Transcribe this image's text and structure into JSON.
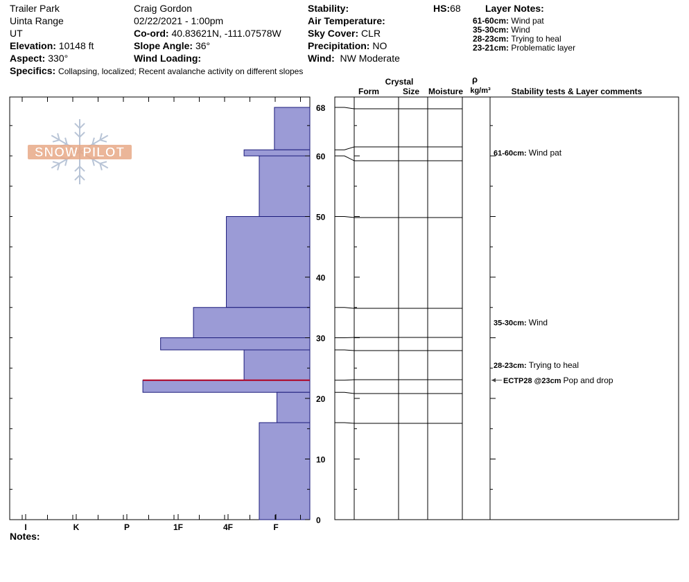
{
  "header": {
    "location": "Trailer Park",
    "range": "Uinta Range",
    "state": "UT",
    "elevation_label": "Elevation:",
    "elevation_value": "10148 ft",
    "aspect_label": "Aspect:",
    "aspect_value": "330°",
    "observer": "Craig Gordon",
    "datetime": "02/22/2021 - 1:00pm",
    "coord_label": "Co-ord:",
    "coord_value": "40.83621N, -111.07578W",
    "slope_label": "Slope Angle:",
    "slope_value": "36°",
    "wind_loading_label": "Wind Loading:",
    "wind_loading_value": "",
    "stability_label": "Stability:",
    "stability_value": "",
    "air_temp_label": "Air Temperature:",
    "air_temp_value": "",
    "sky_label": "Sky Cover:",
    "sky_value": "CLR",
    "precip_label": "Precipitation:",
    "precip_value": "NO",
    "wind_label": "Wind:",
    "wind_value": "NW Moderate",
    "hs_label": "HS:",
    "hs_value": "68",
    "specifics_label": "Specifics:",
    "specifics_value": "Collapsing, localized;  Recent avalanche activity on different slopes"
  },
  "layer_notes": {
    "title": "Layer Notes:",
    "items": [
      {
        "range": "61-60cm:",
        "text": "Wind pat"
      },
      {
        "range": "35-30cm:",
        "text": "Wind"
      },
      {
        "range": "28-23cm:",
        "text": "Trying to heal"
      },
      {
        "range": "23-21cm:",
        "text": "Problematic layer"
      }
    ]
  },
  "logo": {
    "text": "SNOW PILOT",
    "color": "#e8a987"
  },
  "table_headers": {
    "crystal": "Crystal",
    "form": "Form",
    "size": "Size",
    "moisture": "Moisture",
    "rho": "ρ",
    "density_unit": "kg/m³",
    "stability_tests": "Stability tests & Layer comments"
  },
  "comments": [
    {
      "range": "61-60cm:",
      "text": "Wind pat",
      "at": 60.5
    },
    {
      "range": "35-30cm:",
      "text": "Wind",
      "at": 32.5
    },
    {
      "range": "28-23cm:",
      "text": "Trying to heal",
      "at": 25.5
    }
  ],
  "stability_test": {
    "label": "ECTP28 @23cm",
    "text": "Pop and drop",
    "depth": 23
  },
  "notes_label": "Notes:",
  "colors": {
    "layer_fill": "#9b9bd6",
    "layer_stroke": "#1a1a7a",
    "weak_layer": "#b00020"
  },
  "chart_data": {
    "type": "snow-profile",
    "y_axis": {
      "min": 0,
      "max": 68,
      "ticks": [
        0,
        10,
        20,
        30,
        40,
        50,
        60,
        68
      ],
      "unit": "cm"
    },
    "hardness_scale": [
      "I",
      "K",
      "P",
      "1F",
      "4F",
      "F"
    ],
    "layers": [
      {
        "top": 68,
        "bottom": 61,
        "hardness": 0.7
      },
      {
        "top": 61,
        "bottom": 60,
        "hardness": 1.3
      },
      {
        "top": 60,
        "bottom": 50,
        "hardness": 1.0
      },
      {
        "top": 50,
        "bottom": 35,
        "hardness": 1.65
      },
      {
        "top": 35,
        "bottom": 30,
        "hardness": 2.3
      },
      {
        "top": 30,
        "bottom": 28,
        "hardness": 2.95
      },
      {
        "top": 28,
        "bottom": 23,
        "hardness": 1.3
      },
      {
        "top": 23,
        "bottom": 21,
        "hardness": 3.3
      },
      {
        "top": 21,
        "bottom": 16,
        "hardness": 0.65
      },
      {
        "top": 16,
        "bottom": 0,
        "hardness": 1.0
      }
    ],
    "weak_layer_depth": 23
  }
}
